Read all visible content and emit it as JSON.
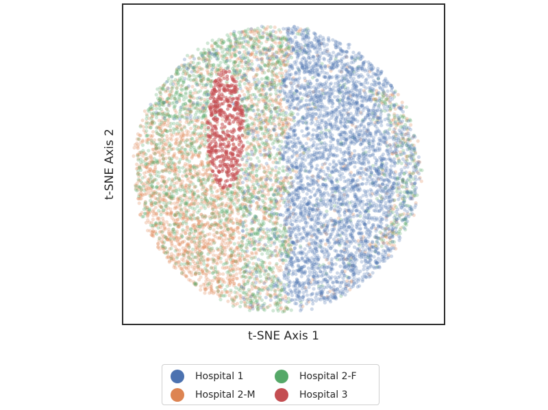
{
  "chart_data": {
    "type": "scatter",
    "title": "",
    "xlabel": "t-SNE Axis 1",
    "ylabel": "t-SNE Axis 2",
    "xlim": [
      -100,
      100
    ],
    "ylim": [
      -100,
      100
    ],
    "grid": false,
    "ticks_visible": false,
    "legend_placement": "below",
    "legend_columns": 2,
    "series": [
      {
        "name": "Hospital 1",
        "color": "#4c72b0",
        "region": "right half of the point cloud",
        "centroid": [
          28,
          5
        ]
      },
      {
        "name": "Hospital 2-M",
        "color": "#dd8452",
        "region": "left and center-left; bottom-left and central vertical band",
        "centroid": [
          -45,
          -25
        ]
      },
      {
        "name": "Hospital 2-F",
        "color": "#55a868",
        "region": "rim of the cloud: top-left, center and far right",
        "centroid": [
          -20,
          15
        ]
      },
      {
        "name": "Hospital 3",
        "color": "#c44e52",
        "region": "compact elongated cluster at upper-center-left",
        "centroid": [
          -38,
          28
        ]
      }
    ]
  }
}
